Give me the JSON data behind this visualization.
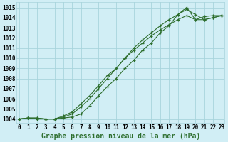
{
  "title": "Graphe pression niveau de la mer (hPa)",
  "background_color": "#d1eef5",
  "grid_color": "#a8d4dc",
  "line_color": "#2d6e2d",
  "xlim": [
    -0.3,
    23.3
  ],
  "ylim": [
    1003.6,
    1015.5
  ],
  "yticks": [
    1004,
    1005,
    1006,
    1007,
    1008,
    1009,
    1010,
    1011,
    1012,
    1013,
    1014,
    1015
  ],
  "xticks": [
    0,
    1,
    2,
    3,
    4,
    5,
    6,
    7,
    8,
    9,
    10,
    11,
    12,
    13,
    14,
    15,
    16,
    17,
    18,
    19,
    20,
    21,
    22,
    23
  ],
  "series": [
    [
      1004.0,
      1004.1,
      1004.1,
      1004.0,
      1004.0,
      1004.1,
      1004.2,
      1004.5,
      1005.3,
      1006.3,
      1007.2,
      1008.0,
      1009.0,
      1009.8,
      1010.8,
      1011.5,
      1012.5,
      1013.2,
      1014.3,
      1015.0,
      1013.8,
      1014.1,
      1014.2,
      1014.2
    ],
    [
      1004.0,
      1004.1,
      1004.1,
      1004.0,
      1004.0,
      1004.2,
      1004.5,
      1005.2,
      1006.0,
      1007.0,
      1008.0,
      1009.0,
      1010.0,
      1011.0,
      1011.8,
      1012.5,
      1013.2,
      1013.8,
      1014.3,
      1014.8,
      1014.3,
      1013.8,
      1014.0,
      1014.2
    ],
    [
      1004.0,
      1004.1,
      1004.0,
      1004.0,
      1004.0,
      1004.3,
      1004.7,
      1005.5,
      1006.3,
      1007.3,
      1008.3,
      1009.0,
      1010.0,
      1010.8,
      1011.5,
      1012.2,
      1012.8,
      1013.3,
      1013.8,
      1014.2,
      1013.8,
      1013.8,
      1014.0,
      1014.2
    ]
  ],
  "title_fontsize": 7,
  "tick_fontsize": 5.5
}
